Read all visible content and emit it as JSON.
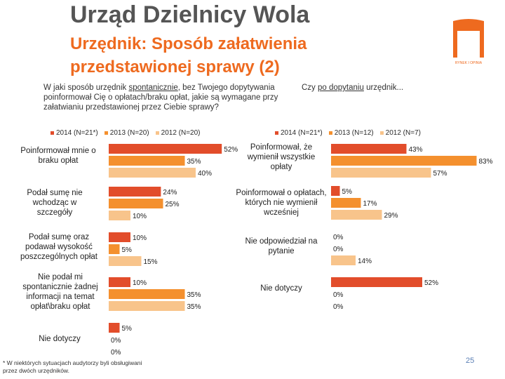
{
  "header": {
    "title": "Urząd Dzielnicy Wola",
    "subtitle": "Urzędnik: Sposób załatwienia przedstawionej sprawy (2)",
    "logo_text": "arc",
    "logo_subtext": "RYNEK I OPINIA"
  },
  "colors": {
    "accent": "#ee6a1f",
    "s2014": "#e24d2b",
    "s2013": "#f4902e",
    "s2012": "#f8c48b"
  },
  "chart_data": [
    {
      "type": "bar",
      "orientation": "horizontal",
      "question": "W jaki sposób urzędnik spontanicznie, bez Twojego dopytywania poinformował Cię o opłatach/braku opłat, jakie są wymagane przy załatwianiu przedstawionej przez Ciebie sprawy?",
      "question_prefix": "W jaki sposób urzędnik ",
      "question_underlined": "spontanicznie",
      "question_suffix": ", bez Twojego dopytywania poinformował Cię o opłatach/braku opłat, jakie są wymagane przy załatwianiu przedstawionej przez Ciebie sprawy?",
      "legend": [
        "2014 (N=21*)",
        "2013 (N=20)",
        "2012 (N=20)"
      ],
      "categories": [
        "Poinformował mnie o braku opłat",
        "Podał sumę nie wchodząc w szczegóły",
        "Podał sumę oraz podawał wysokość poszczególnych opłat",
        "Nie podał mi spontanicznie żadnej informacji na temat opłat\\braku opłat",
        "Nie dotyczy"
      ],
      "series": [
        {
          "name": "2014 (N=21*)",
          "values": [
            52,
            24,
            10,
            10,
            5
          ]
        },
        {
          "name": "2013 (N=20)",
          "values": [
            35,
            25,
            5,
            35,
            0
          ]
        },
        {
          "name": "2012 (N=20)",
          "values": [
            40,
            10,
            15,
            35,
            0
          ]
        }
      ],
      "xlim": [
        0,
        100
      ],
      "unit": "%"
    },
    {
      "type": "bar",
      "orientation": "horizontal",
      "question": "Czy po dopytaniu urzędnik...",
      "question_prefix": "Czy ",
      "question_underlined": "po dopytaniu",
      "question_suffix": " urzędnik...",
      "legend": [
        "2014 (N=21*)",
        "2013 (N=12)",
        "2012 (N=7)"
      ],
      "categories": [
        "Poinformował, że wymienił wszystkie opłaty",
        "Poinformował o opłatach, których nie wymienił wcześniej",
        "Nie odpowiedział na pytanie",
        "Nie dotyczy"
      ],
      "series": [
        {
          "name": "2014 (N=21*)",
          "values": [
            43,
            5,
            0,
            52
          ]
        },
        {
          "name": "2013 (N=12)",
          "values": [
            83,
            17,
            0,
            0
          ]
        },
        {
          "name": "2012 (N=7)",
          "values": [
            57,
            29,
            14,
            0
          ]
        }
      ],
      "xlim": [
        0,
        100
      ],
      "unit": "%"
    }
  ],
  "footnote": "* W niektórych sytuacjach audytorzy byli obsługiwani przez dwóch urzędników.",
  "page_number": "25"
}
